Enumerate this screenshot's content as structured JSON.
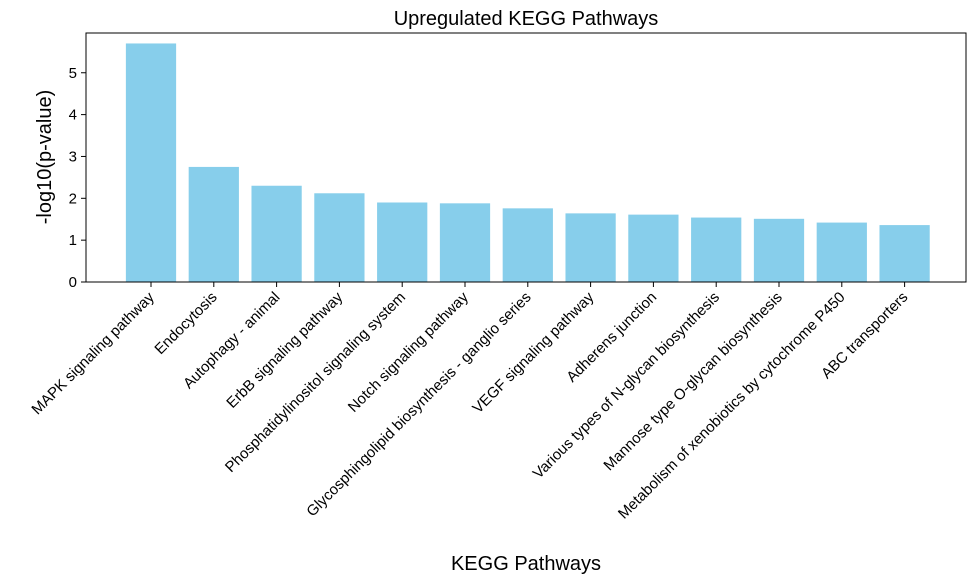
{
  "chart_data": {
    "type": "bar",
    "title": "Upregulated KEGG Pathways",
    "xlabel": "KEGG Pathways",
    "ylabel": "-log10(p-value)",
    "ylim": [
      0,
      5.95
    ],
    "yticks": [
      0,
      1,
      2,
      3,
      4,
      5
    ],
    "grid": false,
    "bar_color": "#87CEEB",
    "categories": [
      "MAPK signaling pathway",
      "Endocytosis",
      "Autophagy - animal",
      "ErbB signaling pathway",
      "Phosphatidylinositol signaling system",
      "Notch signaling pathway",
      "Glycosphingolipid biosynthesis - ganglio series",
      "VEGF signaling pathway",
      "Adherens junction",
      "Various types of N-glycan biosynthesis",
      "Mannose type O-glycan biosynthesis",
      "Metabolism of xenobiotics by cytochrome P450",
      "ABC transporters"
    ],
    "values": [
      5.7,
      2.75,
      2.3,
      2.12,
      1.9,
      1.88,
      1.76,
      1.64,
      1.61,
      1.54,
      1.51,
      1.42,
      1.36
    ]
  }
}
